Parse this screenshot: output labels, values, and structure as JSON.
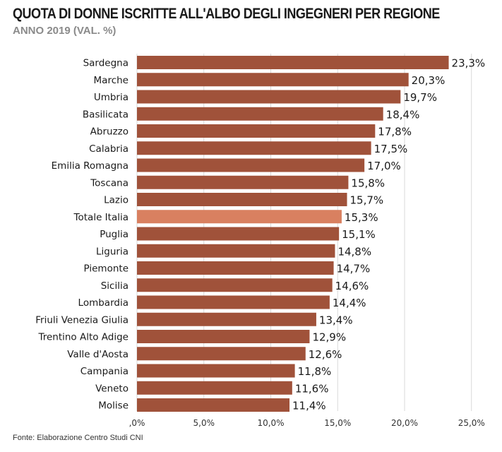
{
  "title": "QUOTA DI DONNE ISCRITTE ALL'ALBO DEGLI INGEGNERI PER REGIONE",
  "subtitle": "ANNO 2019 (VAL. %)",
  "source": "Fonte: Elaborazione Centro Studi CNI",
  "colors": {
    "bar": "#a0523a",
    "highlight": "#d98060",
    "grid": "#d9d9d9",
    "text": "#1a1a1a"
  },
  "chart_data": {
    "type": "bar",
    "orientation": "horizontal",
    "categories": [
      "Sardegna",
      "Marche",
      "Umbria",
      "Basilicata",
      "Abruzzo",
      "Calabria",
      "Emilia Romagna",
      "Toscana",
      "Lazio",
      "Totale Italia",
      "Puglia",
      "Liguria",
      "Piemonte",
      "Sicilia",
      "Lombardia",
      "Friuli Venezia Giulia",
      "Trentino Alto Adige",
      "Valle d'Aosta",
      "Campania",
      "Veneto",
      "Molise"
    ],
    "values": [
      23.3,
      20.3,
      19.7,
      18.4,
      17.8,
      17.5,
      17.0,
      15.8,
      15.7,
      15.3,
      15.1,
      14.8,
      14.7,
      14.6,
      14.4,
      13.4,
      12.9,
      12.6,
      11.8,
      11.6,
      11.4
    ],
    "value_labels": [
      "23,3%",
      "20,3%",
      "19,7%",
      "18,4%",
      "17,8%",
      "17,5%",
      "17,0%",
      "15,8%",
      "15,7%",
      "15,3%",
      "15,1%",
      "14,8%",
      "14,7%",
      "14,6%",
      "14,4%",
      "13,4%",
      "12,9%",
      "12,6%",
      "11,8%",
      "11,6%",
      "11,4%"
    ],
    "highlight_category": "Totale Italia",
    "xlim": [
      0,
      25
    ],
    "xticks": [
      0,
      5,
      10,
      15,
      20,
      25
    ],
    "xtick_labels": [
      ",0%",
      "5,0%",
      "10,0%",
      "15,0%",
      "20,0%",
      "25,0%"
    ],
    "grid": true,
    "legend": false,
    "xlabel": "",
    "ylabel": ""
  }
}
